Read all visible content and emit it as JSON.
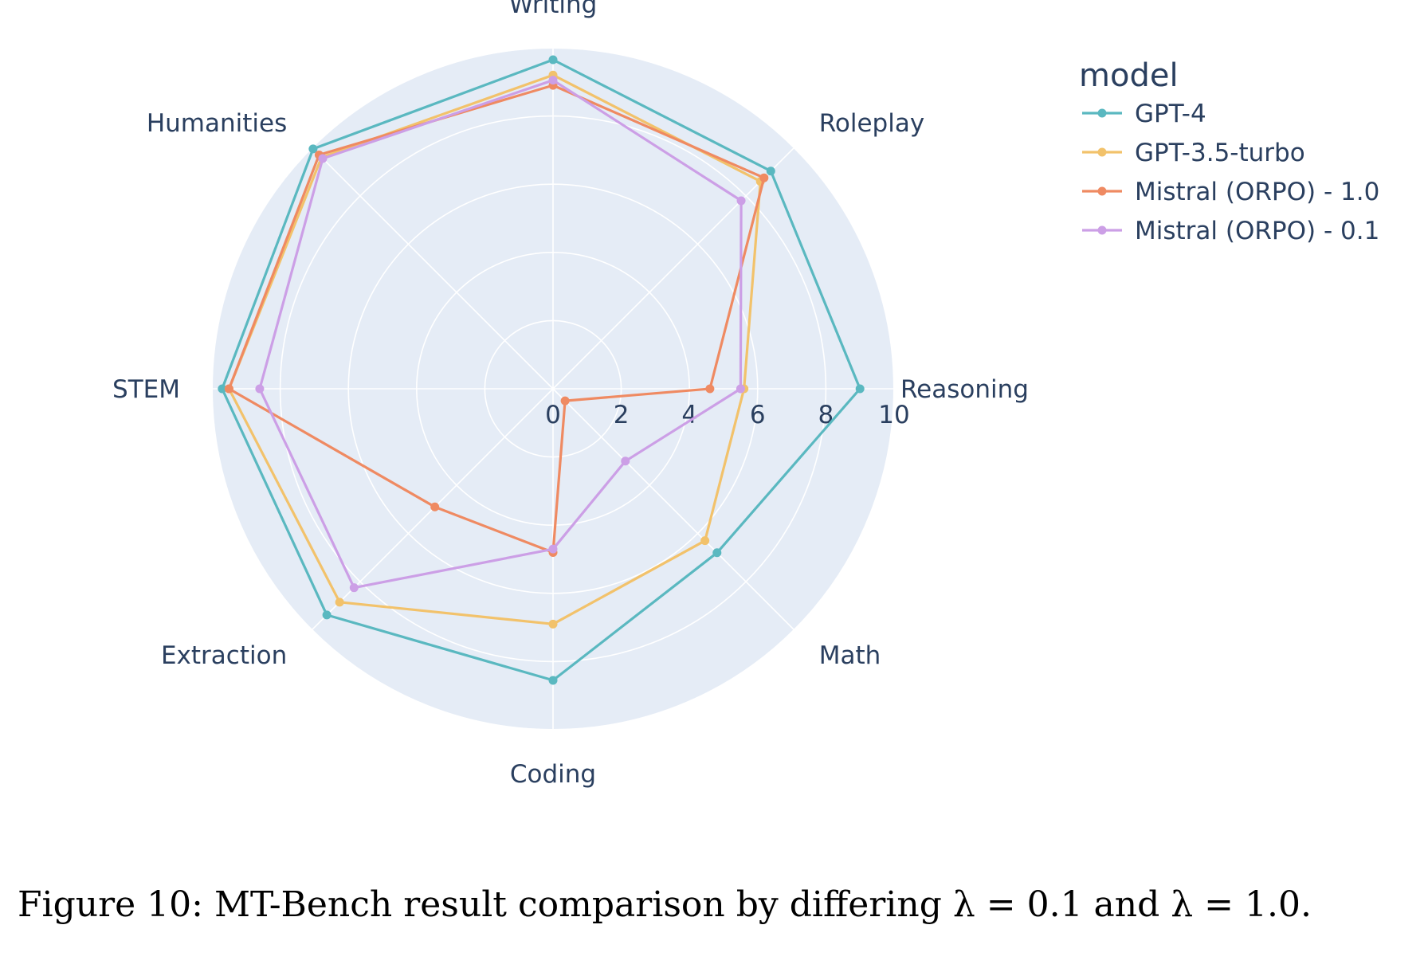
{
  "chart_data": {
    "type": "radar",
    "categories": [
      "Writing",
      "Roleplay",
      "Reasoning",
      "Math",
      "Coding",
      "Extraction",
      "STEM",
      "Humanities"
    ],
    "radial_range": [
      0,
      10
    ],
    "radial_ticks": [
      "0",
      "2",
      "4",
      "6",
      "8",
      "10"
    ],
    "legend_title": "model",
    "series": [
      {
        "name": "GPT-4",
        "color": "#5ab8c0",
        "values": [
          9.65,
          9.03,
          9.0,
          6.8,
          8.55,
          9.38,
          9.7,
          9.95
        ]
      },
      {
        "name": "GPT-3.5-turbo",
        "color": "#f2c26b",
        "values": [
          9.2,
          8.6,
          5.6,
          6.3,
          6.9,
          8.85,
          9.5,
          9.6
        ]
      },
      {
        "name": "Mistral (ORPO) - 1.0",
        "color": "#ef8a62",
        "values": [
          8.9,
          8.75,
          4.6,
          0.5,
          4.8,
          4.9,
          9.5,
          9.7
        ]
      },
      {
        "name": "Mistral (ORPO) - 0.1",
        "color": "#cc9fe6",
        "values": [
          9.05,
          7.8,
          5.5,
          3.0,
          4.7,
          8.25,
          8.6,
          9.55
        ]
      }
    ]
  },
  "caption": "Figure 10: MT-Bench result comparison by differing λ = 0.1 and λ = 1.0."
}
